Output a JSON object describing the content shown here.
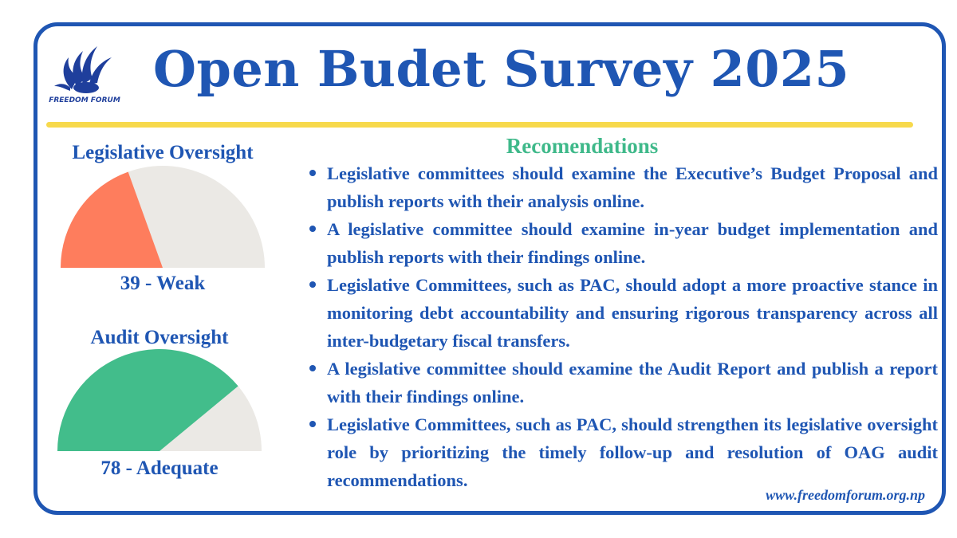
{
  "title": "Open Budet Survey 2025",
  "logo": {
    "name": "freedom-forum-logo",
    "text": "FREEDOM FORUM"
  },
  "colors": {
    "brand_blue": "#1f56b3",
    "accent_yellow": "#f7d94c",
    "heading_green": "#3fb98a",
    "gauge_weak": "#fe7d5d",
    "gauge_adequate": "#42bd8b",
    "gauge_track": "#ebe9e5"
  },
  "gauges": [
    {
      "title": "Legislative Oversight",
      "score": 39,
      "max": 100,
      "value_label": "39 - Weak",
      "color": "#fe7d5d"
    },
    {
      "title": "Audit Oversight",
      "score": 78,
      "max": 100,
      "value_label": "78 - Adequate",
      "color": "#42bd8b"
    }
  ],
  "recommendations": {
    "heading": "Recomendations",
    "items": [
      "Legislative committees should examine the Executive’s Budget Proposal and publish reports with their analysis online.",
      "A legislative committee should examine in-year budget implementation and publish reports with their findings online.",
      "Legislative Committees, such as PAC, should adopt a more proactive stance in monitoring debt accountability and ensuring rigorous transparency across all inter-budgetary fiscal transfers.",
      "A legislative committee should examine the Audit Report and publish a report with their findings online.",
      "Legislative Committees, such as PAC, should strengthen its legislative oversight role by prioritizing the timely follow-up and resolution of OAG audit recommendations."
    ]
  },
  "website": "www.freedomforum.org.np"
}
